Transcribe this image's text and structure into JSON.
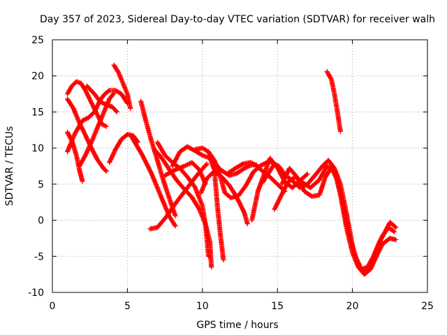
{
  "chart_data": {
    "type": "scatter",
    "title": "Day 357 of 2023, Sidereal Day-to-day VTEC variation (SDTVAR) for receiver walh",
    "xlabel": "GPS time / hours",
    "ylabel": "SDTVAR / TECUs",
    "xlim": [
      0,
      25
    ],
    "ylim": [
      -10,
      25
    ],
    "xticks": [
      0,
      5,
      10,
      15,
      20,
      25
    ],
    "yticks": [
      -10,
      -5,
      0,
      5,
      10,
      15,
      20,
      25
    ],
    "grid": true,
    "marker": "+",
    "color": "#ff0000",
    "series": [
      {
        "points": [
          [
            1.0,
            17.5
          ],
          [
            1.3,
            18.6
          ],
          [
            1.6,
            19.2
          ],
          [
            1.9,
            19.0
          ],
          [
            2.2,
            18.0
          ],
          [
            2.6,
            16.3
          ],
          [
            3.0,
            14.6
          ],
          [
            3.3,
            13.3
          ],
          [
            3.6,
            13.0
          ]
        ]
      },
      {
        "points": [
          [
            1.0,
            12.2
          ],
          [
            1.3,
            11.0
          ],
          [
            1.6,
            9.0
          ],
          [
            1.8,
            7.0
          ],
          [
            2.0,
            5.4
          ]
        ]
      },
      {
        "points": [
          [
            1.0,
            9.5
          ],
          [
            1.5,
            12.0
          ],
          [
            2.0,
            13.8
          ],
          [
            2.4,
            14.2
          ],
          [
            2.8,
            15.0
          ],
          [
            3.2,
            16.7
          ],
          [
            3.5,
            17.5
          ],
          [
            3.8,
            18.0
          ],
          [
            4.2,
            18.0
          ],
          [
            4.6,
            17.5
          ],
          [
            5.0,
            16.2
          ]
        ]
      },
      {
        "points": [
          [
            1.0,
            16.8
          ],
          [
            1.4,
            15.5
          ],
          [
            1.8,
            13.5
          ],
          [
            2.2,
            11.8
          ],
          [
            2.6,
            10.0
          ],
          [
            3.0,
            8.4
          ],
          [
            3.4,
            7.2
          ],
          [
            3.6,
            6.8
          ]
        ]
      },
      {
        "points": [
          [
            1.8,
            7.5
          ],
          [
            2.2,
            9.0
          ],
          [
            2.6,
            10.8
          ],
          [
            3.0,
            12.8
          ],
          [
            3.4,
            14.8
          ],
          [
            3.8,
            16.8
          ],
          [
            4.1,
            17.6
          ]
        ]
      },
      {
        "points": [
          [
            2.3,
            18.6
          ],
          [
            2.8,
            17.5
          ],
          [
            3.2,
            16.4
          ],
          [
            3.6,
            16.0
          ],
          [
            4.0,
            15.7
          ],
          [
            4.3,
            15.0
          ]
        ]
      },
      {
        "points": [
          [
            3.8,
            8.0
          ],
          [
            4.2,
            9.8
          ],
          [
            4.6,
            11.2
          ],
          [
            5.0,
            11.9
          ],
          [
            5.4,
            11.7
          ],
          [
            5.7,
            10.8
          ]
        ]
      },
      {
        "points": [
          [
            4.1,
            21.5
          ],
          [
            4.4,
            20.5
          ],
          [
            4.7,
            19.0
          ],
          [
            5.0,
            17.5
          ],
          [
            5.2,
            15.5
          ]
        ]
      },
      {
        "points": [
          [
            5.3,
            11.5
          ],
          [
            6.0,
            9.0
          ],
          [
            6.6,
            6.5
          ],
          [
            7.2,
            3.5
          ],
          [
            7.8,
            0.5
          ],
          [
            8.2,
            -0.8
          ]
        ]
      },
      {
        "points": [
          [
            5.9,
            16.5
          ],
          [
            6.2,
            14.0
          ],
          [
            6.6,
            11.0
          ],
          [
            7.0,
            8.3
          ],
          [
            7.4,
            5.5
          ],
          [
            7.8,
            3.0
          ],
          [
            8.2,
            0.6
          ]
        ]
      },
      {
        "points": [
          [
            6.5,
            -1.2
          ],
          [
            7.0,
            -1.0
          ],
          [
            7.6,
            0.5
          ],
          [
            8.3,
            2.6
          ],
          [
            9.0,
            4.5
          ],
          [
            9.7,
            6.4
          ],
          [
            10.3,
            7.8
          ]
        ]
      },
      {
        "points": [
          [
            6.8,
            9.8
          ],
          [
            7.3,
            8.6
          ],
          [
            7.8,
            7.0
          ],
          [
            8.3,
            5.5
          ],
          [
            8.8,
            4.3
          ],
          [
            9.3,
            3.2
          ],
          [
            9.8,
            1.5
          ],
          [
            10.2,
            -0.5
          ],
          [
            10.5,
            -3.0
          ],
          [
            10.6,
            -6.5
          ]
        ]
      },
      {
        "points": [
          [
            7.0,
            10.8
          ],
          [
            7.5,
            9.0
          ],
          [
            8.0,
            8.0
          ],
          [
            8.5,
            7.2
          ],
          [
            9.0,
            6.0
          ],
          [
            9.5,
            4.6
          ],
          [
            10.0,
            2.0
          ],
          [
            10.2,
            -0.5
          ],
          [
            10.3,
            -2.5
          ],
          [
            10.4,
            -5.0
          ]
        ]
      },
      {
        "points": [
          [
            8.0,
            7.5
          ],
          [
            8.5,
            9.5
          ],
          [
            9.0,
            10.2
          ],
          [
            9.6,
            9.5
          ],
          [
            10.0,
            9.0
          ],
          [
            10.5,
            8.6
          ],
          [
            10.8,
            7.0
          ],
          [
            11.0,
            2.0
          ],
          [
            11.2,
            -2.0
          ],
          [
            11.4,
            -5.5
          ]
        ]
      },
      {
        "points": [
          [
            7.5,
            6.2
          ],
          [
            8.2,
            7.0
          ],
          [
            8.8,
            7.5
          ],
          [
            9.3,
            8.0
          ],
          [
            9.8,
            7.0
          ],
          [
            10.2,
            5.0
          ]
        ]
      },
      {
        "points": [
          [
            9.5,
            9.8
          ],
          [
            10.0,
            10.0
          ],
          [
            10.4,
            9.5
          ],
          [
            10.8,
            8.0
          ],
          [
            11.2,
            7.0
          ],
          [
            11.8,
            6.2
          ],
          [
            12.3,
            6.5
          ],
          [
            12.8,
            7.2
          ],
          [
            13.2,
            7.6
          ],
          [
            13.6,
            7.7
          ]
        ]
      },
      {
        "points": [
          [
            9.9,
            3.8
          ],
          [
            10.3,
            5.8
          ],
          [
            10.8,
            6.8
          ],
          [
            11.3,
            6.0
          ],
          [
            11.8,
            4.8
          ],
          [
            12.2,
            3.5
          ],
          [
            12.5,
            2.3
          ],
          [
            12.8,
            1.0
          ],
          [
            13.0,
            -0.5
          ]
        ]
      },
      {
        "points": [
          [
            10.4,
            9.5
          ],
          [
            10.8,
            8.3
          ],
          [
            11.2,
            6.0
          ],
          [
            11.5,
            3.8
          ],
          [
            11.9,
            3.1
          ],
          [
            12.4,
            3.4
          ],
          [
            12.9,
            4.8
          ],
          [
            13.4,
            6.7
          ],
          [
            13.9,
            7.6
          ],
          [
            14.5,
            8.2
          ],
          [
            15.0,
            7.4
          ]
        ]
      },
      {
        "points": [
          [
            11.7,
            6.5
          ],
          [
            12.2,
            7.2
          ],
          [
            12.7,
            7.8
          ],
          [
            13.2,
            8.0
          ],
          [
            13.6,
            7.6
          ],
          [
            14.0,
            6.8
          ],
          [
            14.5,
            6.0
          ],
          [
            15.0,
            5.0
          ],
          [
            15.5,
            4.0
          ]
        ]
      },
      {
        "points": [
          [
            13.3,
            0.0
          ],
          [
            13.7,
            4.0
          ],
          [
            14.1,
            6.3
          ],
          [
            14.5,
            8.6
          ],
          [
            15.0,
            7.3
          ],
          [
            15.5,
            5.3
          ],
          [
            16.0,
            4.5
          ],
          [
            16.5,
            5.5
          ],
          [
            17.0,
            6.4
          ]
        ]
      },
      {
        "points": [
          [
            14.0,
            5.2
          ],
          [
            14.4,
            6.5
          ],
          [
            14.8,
            7.8
          ],
          [
            15.1,
            7.5
          ],
          [
            15.5,
            6.3
          ],
          [
            16.0,
            5.5
          ],
          [
            16.5,
            4.5
          ],
          [
            17.0,
            5.0
          ],
          [
            17.5,
            6.2
          ],
          [
            18.0,
            7.5
          ],
          [
            18.4,
            8.3
          ],
          [
            18.8,
            7.2
          ],
          [
            19.2,
            5.0
          ],
          [
            19.6,
            1.0
          ],
          [
            20.0,
            -3.5
          ],
          [
            20.4,
            -6.5
          ],
          [
            20.8,
            -7.5
          ],
          [
            21.2,
            -6.8
          ],
          [
            21.6,
            -5.0
          ],
          [
            22.0,
            -3.3
          ],
          [
            22.5,
            -2.5
          ],
          [
            22.9,
            -2.7
          ]
        ]
      },
      {
        "points": [
          [
            14.8,
            1.5
          ],
          [
            15.2,
            3.2
          ],
          [
            15.7,
            5.3
          ],
          [
            16.2,
            6.0
          ],
          [
            16.7,
            5.2
          ],
          [
            17.2,
            4.5
          ],
          [
            17.8,
            5.6
          ],
          [
            18.3,
            7.5
          ],
          [
            18.8,
            7.0
          ],
          [
            19.2,
            3.5
          ],
          [
            19.6,
            -1.0
          ],
          [
            20.0,
            -4.5
          ],
          [
            20.4,
            -6.5
          ],
          [
            20.8,
            -7.3
          ],
          [
            21.2,
            -6.3
          ],
          [
            21.6,
            -4.0
          ],
          [
            22.0,
            -2.2
          ],
          [
            22.4,
            -1.0
          ],
          [
            22.8,
            -1.6
          ]
        ]
      },
      {
        "points": [
          [
            15.3,
            5.0
          ],
          [
            15.8,
            7.2
          ],
          [
            16.3,
            6.0
          ],
          [
            16.8,
            4.0
          ],
          [
            17.3,
            3.3
          ],
          [
            17.8,
            3.5
          ],
          [
            18.2,
            6.0
          ],
          [
            18.6,
            7.3
          ],
          [
            19.0,
            5.5
          ],
          [
            19.4,
            2.0
          ],
          [
            19.8,
            -2.0
          ],
          [
            20.2,
            -5.0
          ],
          [
            20.6,
            -6.8
          ],
          [
            21.0,
            -6.5
          ],
          [
            21.4,
            -5.0
          ],
          [
            21.8,
            -3.0
          ],
          [
            22.2,
            -1.5
          ],
          [
            22.5,
            -0.3
          ],
          [
            22.9,
            -1.0
          ]
        ]
      },
      {
        "points": [
          [
            18.3,
            20.6
          ],
          [
            18.6,
            19.5
          ],
          [
            18.8,
            17.5
          ],
          [
            19.0,
            15.0
          ],
          [
            19.2,
            12.3
          ]
        ]
      }
    ]
  }
}
